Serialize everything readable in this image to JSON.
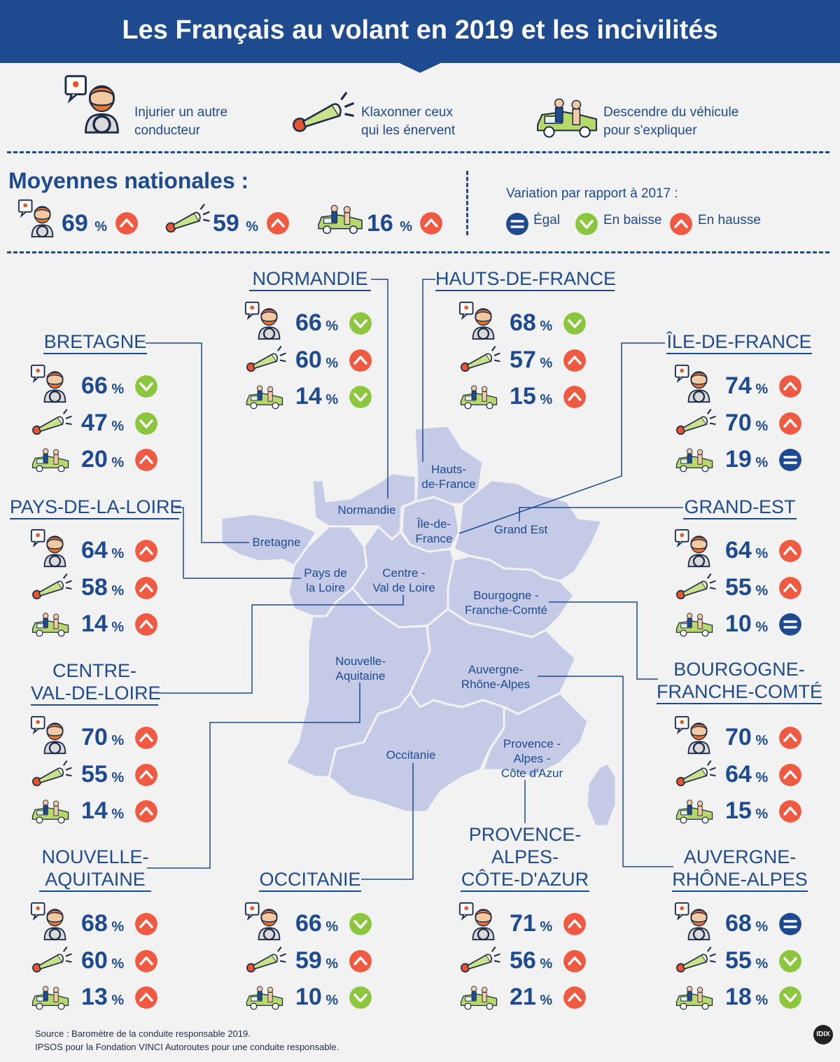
{
  "title": "Les Français au volant en 2019 et les incivilités",
  "legend": [
    {
      "icon": "angry-driver-icon",
      "label_line1": "Injurier un autre",
      "label_line2": "conducteur"
    },
    {
      "icon": "horn-icon",
      "label_line1": "Klaxonner ceux",
      "label_line2": "qui les énervent"
    },
    {
      "icon": "getting-out-icon",
      "label_line1": "Descendre du véhicule",
      "label_line2": "pour s'expliquer"
    }
  ],
  "national": {
    "title": "Moyennes nationales :",
    "values": [
      {
        "icon": "angry-driver-icon",
        "value": "69",
        "unit": "%",
        "trend": "up"
      },
      {
        "icon": "horn-icon",
        "value": "59",
        "unit": "%",
        "trend": "up"
      },
      {
        "icon": "getting-out-icon",
        "value": "16",
        "unit": "%",
        "trend": "up"
      }
    ]
  },
  "variation": {
    "title": "Variation par rapport à 2017 :",
    "equal": "Égal",
    "down": "En baisse",
    "up": "En hausse"
  },
  "colors": {
    "up": "#f05a42",
    "down": "#8cc63f",
    "equal": "#1e4b8f",
    "map": "#c5cbe6",
    "navy": "#1e4b8f"
  },
  "regions": [
    {
      "id": "normandie",
      "name": "NORMANDIE",
      "stats": [
        {
          "v": "66",
          "u": "%",
          "t": "down"
        },
        {
          "v": "60",
          "u": "%",
          "t": "up"
        },
        {
          "v": "14",
          "u": "%",
          "t": "down"
        }
      ]
    },
    {
      "id": "hauts-de-france",
      "name": "HAUTS-DE-FRANCE",
      "stats": [
        {
          "v": "68",
          "u": "%",
          "t": "down"
        },
        {
          "v": "57",
          "u": "%",
          "t": "up"
        },
        {
          "v": "15",
          "u": "%",
          "t": "up"
        }
      ]
    },
    {
      "id": "bretagne",
      "name": "BRETAGNE",
      "stats": [
        {
          "v": "66",
          "u": "%",
          "t": "down"
        },
        {
          "v": "47",
          "u": "%",
          "t": "down"
        },
        {
          "v": "20",
          "u": "%",
          "t": "up"
        }
      ]
    },
    {
      "id": "ile-de-france",
      "name": "ÎLE-DE-FRANCE",
      "stats": [
        {
          "v": "74",
          "u": "%",
          "t": "up"
        },
        {
          "v": "70",
          "u": "%",
          "t": "up"
        },
        {
          "v": "19",
          "u": "%",
          "t": "equal"
        }
      ]
    },
    {
      "id": "pays-de-la-loire",
      "name": "PAYS-DE-LA-LOIRE",
      "stats": [
        {
          "v": "64",
          "u": "%",
          "t": "up"
        },
        {
          "v": "58",
          "u": "%",
          "t": "up"
        },
        {
          "v": "14",
          "u": "%",
          "t": "up"
        }
      ]
    },
    {
      "id": "grand-est",
      "name": "GRAND-EST",
      "stats": [
        {
          "v": "64",
          "u": "%",
          "t": "up"
        },
        {
          "v": "55",
          "u": "%",
          "t": "up"
        },
        {
          "v": "10",
          "u": "%",
          "t": "equal"
        }
      ]
    },
    {
      "id": "centre-val-de-loire",
      "name_line1": "CENTRE-",
      "name_line2": "VAL-DE-LOIRE",
      "stats": [
        {
          "v": "70",
          "u": "%",
          "t": "up"
        },
        {
          "v": "55",
          "u": "%",
          "t": "up"
        },
        {
          "v": "14",
          "u": "%",
          "t": "up"
        }
      ]
    },
    {
      "id": "bourgogne-franche-comte",
      "name_line1": "BOURGOGNE-",
      "name_line2": "FRANCHE-COMTÉ",
      "stats": [
        {
          "v": "70",
          "u": "%",
          "t": "up"
        },
        {
          "v": "64",
          "u": "%",
          "t": "up"
        },
        {
          "v": "15",
          "u": "%",
          "t": "up"
        }
      ]
    },
    {
      "id": "nouvelle-aquitaine",
      "name_line1": "NOUVELLE-",
      "name_line2": "AQUITAINE",
      "stats": [
        {
          "v": "68",
          "u": "%",
          "t": "up"
        },
        {
          "v": "60",
          "u": "%",
          "t": "up"
        },
        {
          "v": "13",
          "u": "%",
          "t": "up"
        }
      ]
    },
    {
      "id": "occitanie",
      "name": "OCCITANIE",
      "stats": [
        {
          "v": "66",
          "u": "%",
          "t": "down"
        },
        {
          "v": "59",
          "u": "%",
          "t": "up"
        },
        {
          "v": "10",
          "u": "%",
          "t": "down"
        }
      ]
    },
    {
      "id": "paca",
      "name_line1": "PROVENCE-",
      "name_line2": "ALPES-",
      "name_line3": "CÔTE-D'AZUR",
      "stats": [
        {
          "v": "71",
          "u": "%",
          "t": "up"
        },
        {
          "v": "56",
          "u": "%",
          "t": "up"
        },
        {
          "v": "21",
          "u": "%",
          "t": "up"
        }
      ]
    },
    {
      "id": "auvergne-rhone-alpes",
      "name_line1": "AUVERGNE-",
      "name_line2": "RHÔNE-ALPES",
      "stats": [
        {
          "v": "68",
          "u": "%",
          "t": "equal"
        },
        {
          "v": "55",
          "u": "%",
          "t": "down"
        },
        {
          "v": "18",
          "u": "%",
          "t": "down"
        }
      ]
    }
  ],
  "map_labels": {
    "hauts": [
      "Hauts-",
      "de-France"
    ],
    "normandie": "Normandie",
    "idf": [
      "Île-de-",
      "France"
    ],
    "grand_est": "Grand Est",
    "bretagne": "Bretagne",
    "pdl": [
      "Pays de",
      "la Loire"
    ],
    "centre": [
      "Centre -",
      "Val de Loire"
    ],
    "bfc": [
      "Bourgogne -",
      "Franche-Comté"
    ],
    "na": [
      "Nouvelle-",
      "Aquitaine"
    ],
    "ara": [
      "Auvergne-",
      "Rhône-Alpes"
    ],
    "occitanie": "Occitanie",
    "paca": [
      "Provence -",
      "Alpes -",
      "Côte d'Azur"
    ]
  },
  "source": {
    "line1": "Source : Baromètre de la conduite responsable 2019.",
    "line2": "IPSOS pour la Fondation VINCI Autoroutes pour une conduite responsable."
  },
  "logo": "IDIX"
}
